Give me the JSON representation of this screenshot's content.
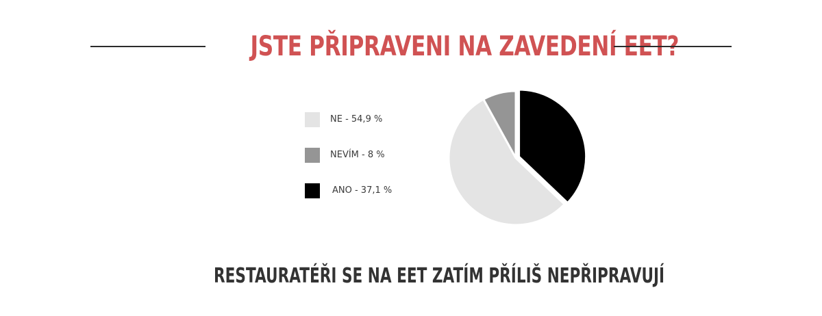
{
  "title": "JSTE PŘIPRAVENI NA ZAVEDENÍ EET?",
  "subtitle": "RESTAURATÉŘI SE NA EET ZATÍM PŘÍLIŠ NEPŘIPRAVUJÍ",
  "colors": {
    "title": "#d05253",
    "subtitle": "#333333",
    "rule": "#2b2b2b",
    "slice_gap": "#ffffff"
  },
  "legend": [
    {
      "label": "NE - 54,9 %",
      "color": "#e4e4e4"
    },
    {
      "label": "NEVÍM - 8 %",
      "color": "#959595"
    },
    {
      "label": "ANO - 37,1 %",
      "color": "#000000"
    }
  ],
  "chart_data": {
    "type": "pie",
    "title": "JSTE PŘIPRAVENI NA ZAVEDENÍ EET?",
    "categories": [
      "ANO",
      "NE",
      "NEVÍM"
    ],
    "values": [
      37.1,
      54.9,
      8
    ],
    "colors": [
      "#000000",
      "#e4e4e4",
      "#959595"
    ],
    "legend_position": "left",
    "exploded": "ANO"
  }
}
